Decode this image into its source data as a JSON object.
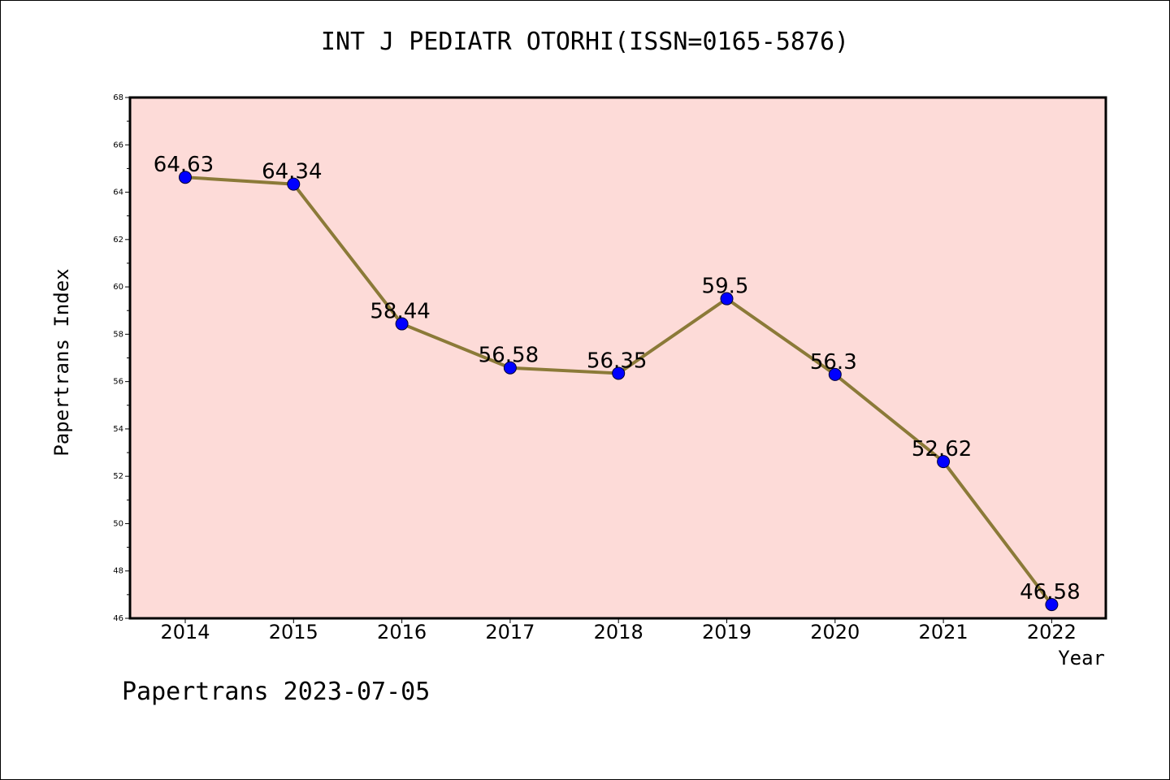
{
  "chart_data": {
    "type": "line",
    "title": "INT J PEDIATR OTORHI(ISSN=0165-5876)",
    "xlabel": "Year",
    "ylabel": "Papertrans Index",
    "footer": "Papertrans 2023-07-05",
    "categories": [
      "2014",
      "2015",
      "2016",
      "2017",
      "2018",
      "2019",
      "2020",
      "2021",
      "2022"
    ],
    "values": [
      64.63,
      64.34,
      58.44,
      56.58,
      56.35,
      59.5,
      56.3,
      52.62,
      46.58
    ],
    "value_labels": [
      "64.63",
      "64.34",
      "58.44",
      "56.58",
      "56.35",
      "59.5",
      "56.3",
      "52.62",
      "46.58"
    ],
    "ylim": [
      46,
      68
    ],
    "yticks": [
      "46",
      "48",
      "50",
      "52",
      "54",
      "56",
      "58",
      "60",
      "62",
      "64",
      "66",
      "68"
    ],
    "grid": false,
    "colors": {
      "plot_background": "#fddbd8",
      "line": "#8b7a38",
      "marker": "#0000ff"
    }
  }
}
